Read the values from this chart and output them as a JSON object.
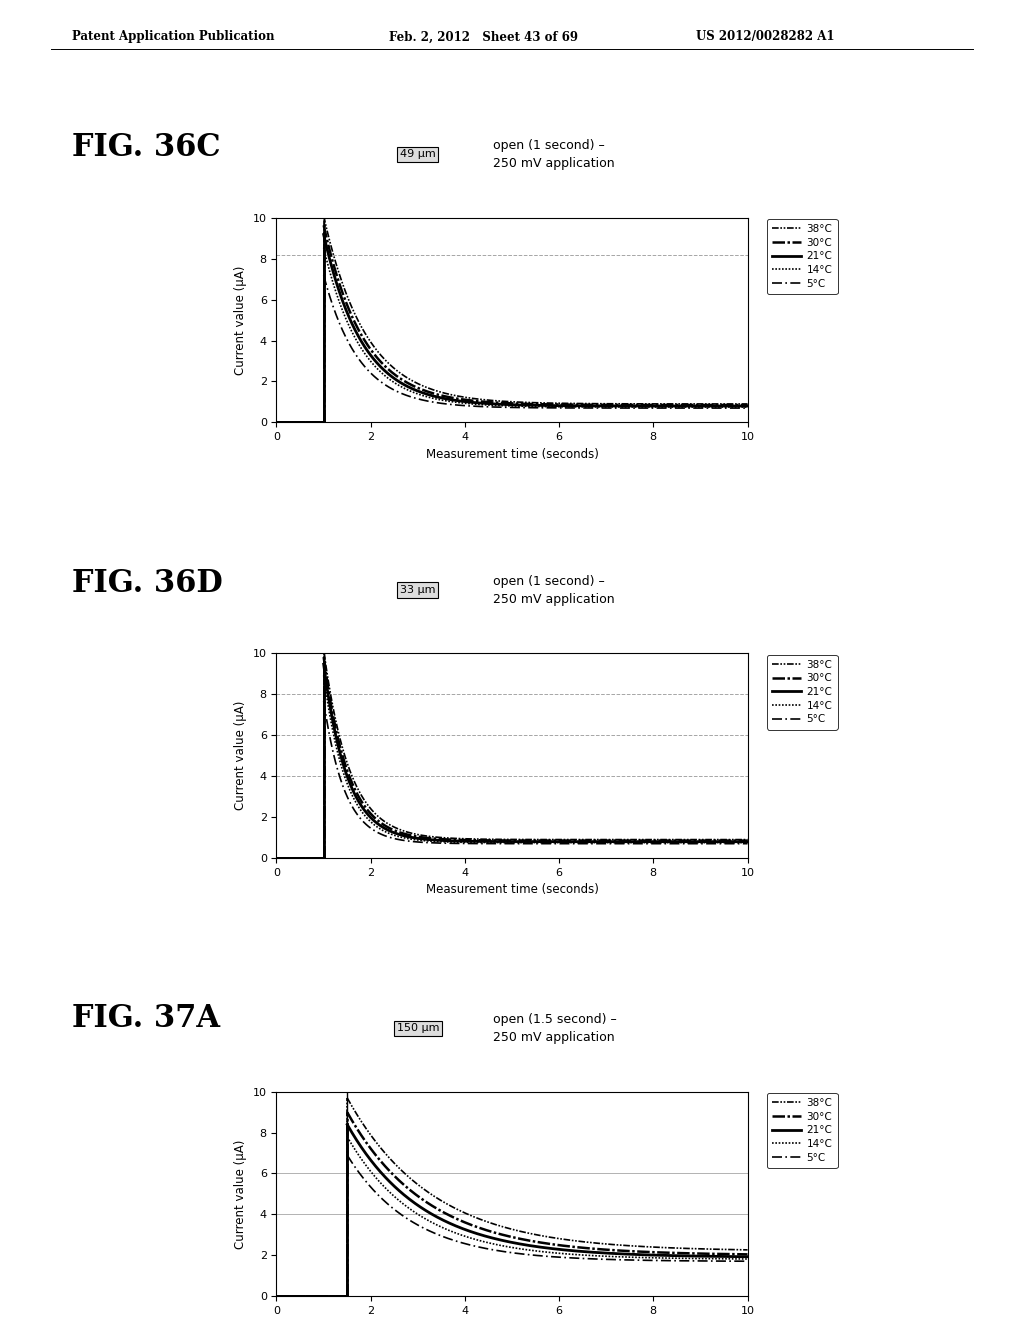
{
  "header_left": "Patent Application Publication",
  "header_mid": "Feb. 2, 2012   Sheet 43 of 69",
  "header_right": "US 2012/0028282 A1",
  "fig_labels": [
    "FIG. 36C",
    "FIG. 36D",
    "FIG. 37A"
  ],
  "box_labels": [
    "49 μm",
    "33 μm",
    "150 μm"
  ],
  "titles": [
    "open (1 second) –\n250 mV application",
    "open (1 second) –\n250 mV application",
    "open (1.5 second) –\n250 mV application"
  ],
  "xlabel": "Measurement time (seconds)",
  "ylabel": "Current value (μA)",
  "xlim": [
    0,
    10
  ],
  "ylim": [
    0,
    10
  ],
  "xticks": [
    0,
    2,
    4,
    6,
    8,
    10
  ],
  "yticks": [
    0,
    2,
    4,
    6,
    8,
    10
  ],
  "hlines_36C": [
    8.2
  ],
  "hlines_36D": [
    4.0,
    6.0,
    8.0
  ],
  "hlines_37A": [
    4.0,
    6.0
  ],
  "vline_36C": 1.0,
  "vline_36D": 1.0,
  "vline_37A": 1.5,
  "temps": [
    "38°C",
    "30°C",
    "21°C",
    "14°C",
    "5°C"
  ],
  "bg_color": "#ffffff",
  "plot_bg": "#ffffff",
  "curves_36C": {
    "A": [
      9.2,
      8.8,
      8.4,
      7.8,
      6.5
    ],
    "tau": [
      0.9,
      0.85,
      0.82,
      0.8,
      0.75
    ],
    "C": [
      0.9,
      0.85,
      0.8,
      0.75,
      0.7
    ]
  },
  "curves_36D": {
    "A": [
      9.3,
      9.0,
      8.7,
      8.2,
      7.0
    ],
    "tau": [
      0.55,
      0.52,
      0.5,
      0.48,
      0.45
    ],
    "C": [
      0.9,
      0.85,
      0.8,
      0.75,
      0.7
    ]
  },
  "curves_37A": {
    "A": [
      7.5,
      7.0,
      6.5,
      6.0,
      5.2
    ],
    "tau": [
      1.8,
      1.7,
      1.6,
      1.5,
      1.4
    ],
    "C": [
      2.2,
      2.0,
      1.9,
      1.8,
      1.7
    ]
  }
}
